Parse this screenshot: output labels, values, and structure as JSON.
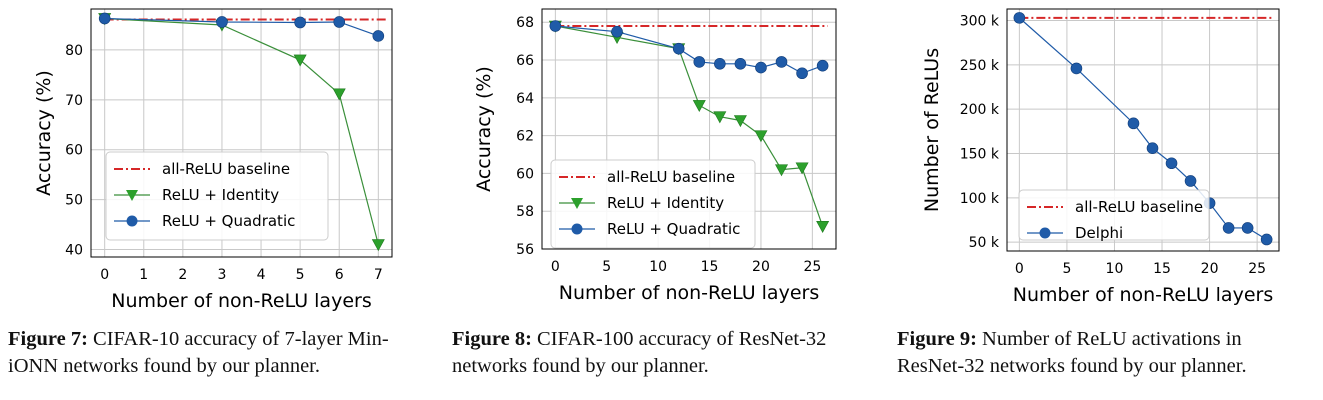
{
  "colors": {
    "baseline": "#d62728",
    "identity": "#2ca02c",
    "identity_line": "#3a8f3a",
    "quadratic": "#1f5ba8",
    "grid": "#c8c8c8",
    "axis": "#000000"
  },
  "chart_data": [
    {
      "type": "line",
      "title": "",
      "xlabel": "Number of non-ReLU layers",
      "ylabel": "Accuracy (%)",
      "xlim": [
        -0.35,
        7.35
      ],
      "ylim": [
        38.5,
        88.2
      ],
      "xticks": [
        0,
        1,
        2,
        3,
        4,
        5,
        6,
        7
      ],
      "yticks": [
        40,
        50,
        60,
        70,
        80
      ],
      "grid": true,
      "legend": "lower-left",
      "baseline": {
        "name": "all-ReLU baseline",
        "y": 86.1
      },
      "series": [
        {
          "name": "ReLU + Identity",
          "marker": "triangle-down",
          "x": [
            0,
            3,
            5,
            6,
            7
          ],
          "y": [
            86.3,
            85.0,
            78.0,
            71.2,
            41.0
          ]
        },
        {
          "name": "ReLU + Quadratic",
          "marker": "circle",
          "x": [
            0,
            3,
            5,
            6,
            7
          ],
          "y": [
            86.3,
            85.6,
            85.5,
            85.6,
            82.8
          ]
        }
      ]
    },
    {
      "type": "line",
      "title": "",
      "xlabel": "Number of non-ReLU layers",
      "ylabel": "Accuracy (%)",
      "xlim": [
        -1.3,
        27.3
      ],
      "ylim": [
        56.0,
        68.7
      ],
      "xticks": [
        0,
        5,
        10,
        15,
        20,
        25
      ],
      "yticks": [
        56,
        58,
        60,
        62,
        64,
        66,
        68
      ],
      "grid": true,
      "legend": "lower-left",
      "baseline": {
        "name": "all-ReLU baseline",
        "y": 67.8
      },
      "series": [
        {
          "name": "ReLU + Identity",
          "marker": "triangle-down",
          "x": [
            0,
            6,
            12,
            14,
            16,
            18,
            20,
            22,
            24,
            26
          ],
          "y": [
            67.8,
            67.2,
            66.6,
            63.6,
            63.0,
            62.8,
            62.0,
            60.2,
            60.3,
            57.2
          ]
        },
        {
          "name": "ReLU + Quadratic",
          "marker": "circle",
          "x": [
            0,
            6,
            12,
            14,
            16,
            18,
            20,
            22,
            24,
            26
          ],
          "y": [
            67.8,
            67.5,
            66.6,
            65.9,
            65.8,
            65.8,
            65.6,
            65.9,
            65.3,
            65.7
          ]
        }
      ]
    },
    {
      "type": "line",
      "title": "",
      "xlabel": "Number of non-ReLU layers",
      "ylabel": "Number of ReLUs",
      "xlim": [
        -1.3,
        27.3
      ],
      "ylim": [
        40000,
        313000
      ],
      "xticks": [
        0,
        5,
        10,
        15,
        20,
        25
      ],
      "yticks": [
        50000,
        100000,
        150000,
        200000,
        250000,
        300000
      ],
      "ytick_labels": [
        "50 k",
        "100 k",
        "150 k",
        "200 k",
        "250 k",
        "300 k"
      ],
      "grid": true,
      "legend": "lower-left",
      "baseline": {
        "name": "all-ReLU baseline",
        "y": 303000
      },
      "series": [
        {
          "name": "Delphi",
          "marker": "circle",
          "x": [
            0,
            6,
            12,
            14,
            16,
            18,
            20,
            22,
            24,
            26
          ],
          "y": [
            303000,
            246000,
            184000,
            156000,
            139000,
            119000,
            94000,
            66000,
            66000,
            53000
          ]
        }
      ]
    }
  ],
  "captions": [
    {
      "label": "Figure 7:",
      "line1": "CIFAR-10 accuracy of 7-layer Min-",
      "line2": "iONN networks found by our planner."
    },
    {
      "label": "Figure 8:",
      "line1": "CIFAR-100 accuracy of ResNet-32",
      "line2": "networks found by our planner."
    },
    {
      "label": "Figure 9:",
      "line1": "Number of ReLU activations in",
      "line2": "ResNet-32 networks found by our planner."
    }
  ]
}
